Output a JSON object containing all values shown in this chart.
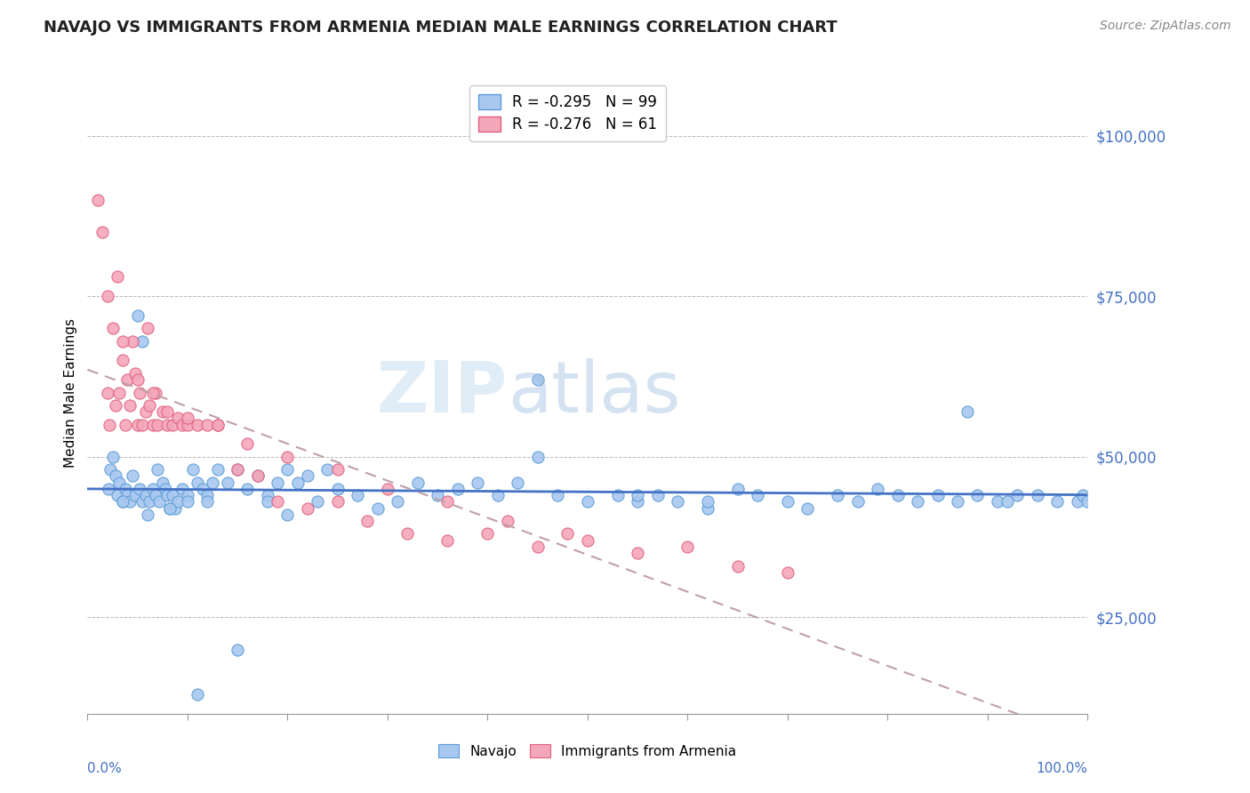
{
  "title": "NAVAJO VS IMMIGRANTS FROM ARMENIA MEDIAN MALE EARNINGS CORRELATION CHART",
  "source": "Source: ZipAtlas.com",
  "ylabel": "Median Male Earnings",
  "yticks": [
    25000,
    50000,
    75000,
    100000
  ],
  "ytick_labels": [
    "$25,000",
    "$50,000",
    "$75,000",
    "$100,000"
  ],
  "xmin": 0.0,
  "xmax": 100.0,
  "ymin": 10000,
  "ymax": 110000,
  "navajo_color": "#a8c8f0",
  "navajo_edge_color": "#5b9bd5",
  "armenia_color": "#f4a7b9",
  "armenia_edge_color": "#e06080",
  "trend_navajo_color": "#4472c4",
  "trend_armenia_color": "#c0a0a8",
  "legend_R_navajo": "R = -0.295",
  "legend_N_navajo": "N = 99",
  "legend_R_armenia": "R = -0.276",
  "legend_N_armenia": "N = 61",
  "navajo_x": [
    2.1,
    2.3,
    2.5,
    2.8,
    3.0,
    3.2,
    3.5,
    3.8,
    4.0,
    4.2,
    4.5,
    4.8,
    5.0,
    5.2,
    5.5,
    5.8,
    6.0,
    6.2,
    6.5,
    6.8,
    7.0,
    7.2,
    7.5,
    7.8,
    8.0,
    8.2,
    8.5,
    8.8,
    9.0,
    9.5,
    10.0,
    10.5,
    11.0,
    11.5,
    12.0,
    12.5,
    13.0,
    14.0,
    15.0,
    16.0,
    17.0,
    18.0,
    19.0,
    20.0,
    21.0,
    22.0,
    23.0,
    24.0,
    25.0,
    27.0,
    29.0,
    31.0,
    33.0,
    35.0,
    37.0,
    39.0,
    41.0,
    43.0,
    45.0,
    47.0,
    50.0,
    53.0,
    55.0,
    57.0,
    59.0,
    62.0,
    65.0,
    67.0,
    70.0,
    72.0,
    75.0,
    77.0,
    79.0,
    81.0,
    83.0,
    85.0,
    87.0,
    89.0,
    91.0,
    93.0,
    95.0,
    97.0,
    99.0,
    99.5,
    100.0,
    11.0,
    15.0,
    45.0,
    62.0,
    18.0,
    5.5,
    8.2,
    10.0,
    12.0,
    3.5,
    20.0,
    55.0,
    88.0,
    92.0
  ],
  "navajo_y": [
    45000,
    48000,
    50000,
    47000,
    44000,
    46000,
    43000,
    45000,
    44000,
    43000,
    47000,
    44000,
    72000,
    45000,
    43000,
    44000,
    41000,
    43000,
    45000,
    44000,
    48000,
    43000,
    46000,
    45000,
    44000,
    42000,
    44000,
    42000,
    43000,
    45000,
    44000,
    48000,
    46000,
    45000,
    44000,
    46000,
    48000,
    46000,
    48000,
    45000,
    47000,
    44000,
    46000,
    48000,
    46000,
    47000,
    43000,
    48000,
    45000,
    44000,
    42000,
    43000,
    46000,
    44000,
    45000,
    46000,
    44000,
    46000,
    50000,
    44000,
    43000,
    44000,
    43000,
    44000,
    43000,
    42000,
    45000,
    44000,
    43000,
    42000,
    44000,
    43000,
    45000,
    44000,
    43000,
    44000,
    43000,
    44000,
    43000,
    44000,
    44000,
    43000,
    43000,
    44000,
    43000,
    13000,
    20000,
    62000,
    43000,
    43000,
    68000,
    42000,
    43000,
    43000,
    43000,
    41000,
    44000,
    57000,
    43000
  ],
  "armenia_x": [
    1.5,
    2.0,
    2.2,
    2.5,
    2.8,
    3.0,
    3.2,
    3.5,
    3.8,
    4.0,
    4.2,
    4.5,
    4.8,
    5.0,
    5.2,
    5.5,
    5.8,
    6.0,
    6.2,
    6.5,
    6.8,
    7.0,
    7.5,
    8.0,
    8.5,
    9.0,
    9.5,
    10.0,
    11.0,
    12.0,
    13.0,
    15.0,
    17.0,
    19.0,
    22.0,
    25.0,
    28.0,
    32.0,
    36.0,
    40.0,
    45.0,
    50.0,
    55.0,
    60.0,
    65.0,
    70.0,
    1.0,
    2.0,
    3.5,
    5.0,
    6.5,
    8.0,
    10.0,
    13.0,
    16.0,
    20.0,
    25.0,
    30.0,
    36.0,
    42.0,
    48.0
  ],
  "armenia_y": [
    85000,
    60000,
    55000,
    70000,
    58000,
    78000,
    60000,
    65000,
    55000,
    62000,
    58000,
    68000,
    63000,
    55000,
    60000,
    55000,
    57000,
    70000,
    58000,
    55000,
    60000,
    55000,
    57000,
    55000,
    55000,
    56000,
    55000,
    55000,
    55000,
    55000,
    55000,
    48000,
    47000,
    43000,
    42000,
    43000,
    40000,
    38000,
    37000,
    38000,
    36000,
    37000,
    35000,
    36000,
    33000,
    32000,
    90000,
    75000,
    68000,
    62000,
    60000,
    57000,
    56000,
    55000,
    52000,
    50000,
    48000,
    45000,
    43000,
    40000,
    38000
  ]
}
